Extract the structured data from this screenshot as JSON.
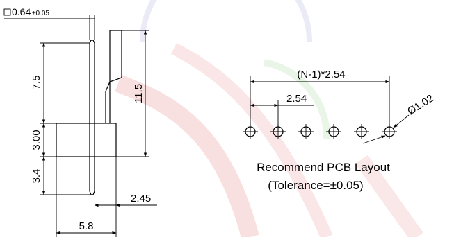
{
  "drawing": {
    "dim_pin_square_main": "0.64",
    "dim_pin_square_tol": "±0.05",
    "dim_top": "7.5",
    "dim_housing": "3.00",
    "dim_bottom": "3.4",
    "dim_total": "11.5",
    "dim_offset": "2.45",
    "dim_width": "5.8"
  },
  "pcb": {
    "dim_span": "(N-1)*2.54",
    "dim_pitch": "2.54",
    "dim_hole": "Ø1.02",
    "hole_count": 6,
    "caption": "Recommend PCB Layout",
    "tolerance": "(Tolerance=±0.05)"
  },
  "colors": {
    "line": "#000000",
    "watermark_red": "#f4c6c8",
    "watermark_blue": "#d9dcef",
    "watermark_green": "#d8efd4"
  }
}
